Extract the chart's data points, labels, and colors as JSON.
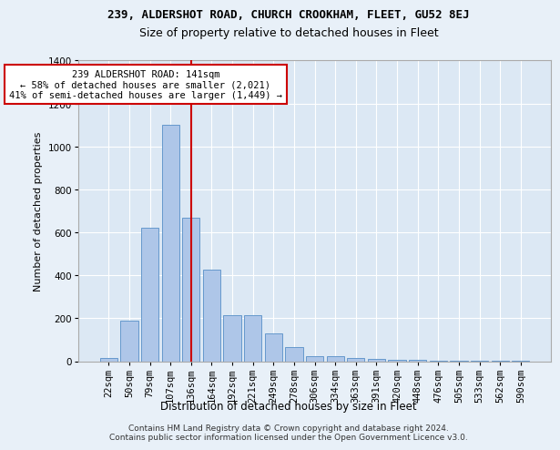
{
  "title_line1": "239, ALDERSHOT ROAD, CHURCH CROOKHAM, FLEET, GU52 8EJ",
  "title_line2": "Size of property relative to detached houses in Fleet",
  "xlabel": "Distribution of detached houses by size in Fleet",
  "ylabel": "Number of detached properties",
  "categories": [
    "22sqm",
    "50sqm",
    "79sqm",
    "107sqm",
    "136sqm",
    "164sqm",
    "192sqm",
    "221sqm",
    "249sqm",
    "278sqm",
    "306sqm",
    "334sqm",
    "363sqm",
    "391sqm",
    "420sqm",
    "448sqm",
    "476sqm",
    "505sqm",
    "533sqm",
    "562sqm",
    "590sqm"
  ],
  "values": [
    15,
    190,
    620,
    1100,
    670,
    425,
    215,
    215,
    130,
    65,
    25,
    25,
    15,
    10,
    8,
    5,
    3,
    2,
    2,
    1,
    2
  ],
  "bar_color": "#aec6e8",
  "bar_edge_color": "#6699cc",
  "vline_x": 4,
  "vline_color": "#cc0000",
  "annotation_text": "239 ALDERSHOT ROAD: 141sqm\n← 58% of detached houses are smaller (2,021)\n41% of semi-detached houses are larger (1,449) →",
  "annotation_box_color": "#ffffff",
  "annotation_box_edge": "#cc0000",
  "ylim": [
    0,
    1400
  ],
  "yticks": [
    0,
    200,
    400,
    600,
    800,
    1000,
    1200,
    1400
  ],
  "footer_line1": "Contains HM Land Registry data © Crown copyright and database right 2024.",
  "footer_line2": "Contains public sector information licensed under the Open Government Licence v3.0.",
  "bg_color": "#e8f0f8",
  "plot_bg_color": "#dce8f4",
  "title1_fontsize": 9,
  "title2_fontsize": 9,
  "ylabel_fontsize": 8,
  "xlabel_fontsize": 8.5,
  "tick_fontsize": 7.5,
  "footer_fontsize": 6.5
}
